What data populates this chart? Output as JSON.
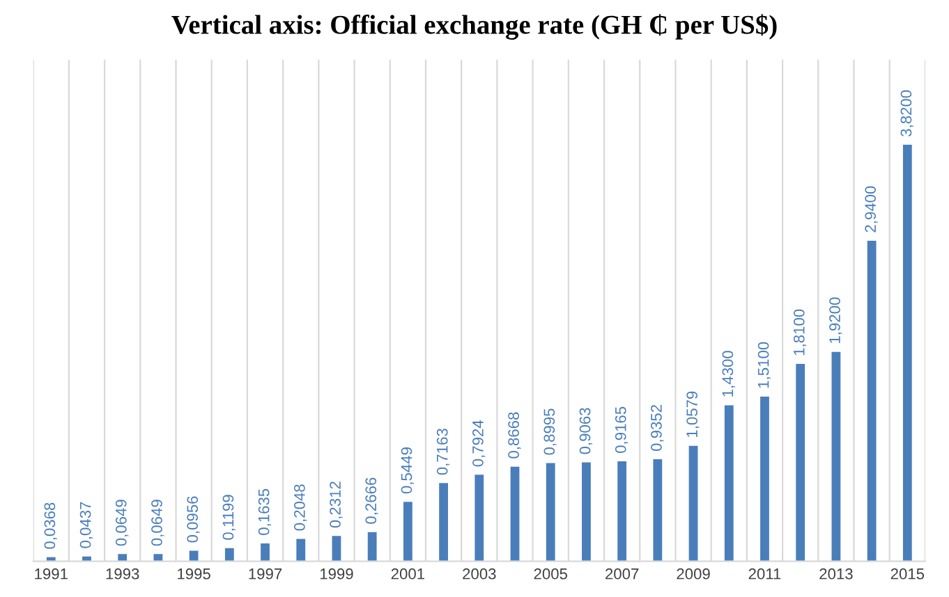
{
  "chart_data": {
    "type": "bar",
    "title": "Vertical axis: Official exchange rate (GH ₵ per US$)",
    "categories": [
      "1991",
      null,
      "1993",
      null,
      "1995",
      null,
      "1997",
      null,
      "1999",
      null,
      "2001",
      null,
      "2003",
      null,
      "2005",
      null,
      "2007",
      null,
      "2009",
      null,
      "2011",
      null,
      "2013",
      null,
      "2015"
    ],
    "values": [
      0.0368,
      0.0437,
      0.0649,
      0.0649,
      0.0956,
      0.1199,
      0.1635,
      0.2048,
      0.2312,
      0.2666,
      0.5449,
      0.7163,
      0.7924,
      0.8668,
      0.8995,
      0.9063,
      0.9165,
      0.9352,
      1.0579,
      1.43,
      1.51,
      1.81,
      1.92,
      2.94,
      3.82
    ],
    "value_labels": [
      "0,0368",
      "0,0437",
      "0,0649",
      "0,0649",
      "0,0956",
      "0,1199",
      "0,1635",
      "0,2048",
      "0,2312",
      "0,2666",
      "0,5449",
      "0,7163",
      "0,7924",
      "0,8668",
      "0,8995",
      "0,9063",
      "0,9165",
      "0,9352",
      "1,0579",
      "1,4300",
      "1,5100",
      "1,8100",
      "1,9200",
      "2,9400",
      "3,8200"
    ],
    "color": "#4a7ebb",
    "ylim": [
      0,
      4.6
    ],
    "grid": "x",
    "tick_labels": "x"
  }
}
